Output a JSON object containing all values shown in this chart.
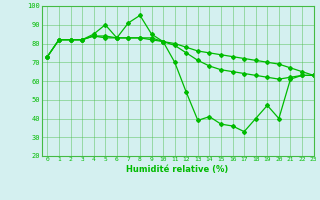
{
  "line1": {
    "x": [
      0,
      1,
      2,
      3,
      4,
      5,
      6,
      7,
      8,
      9,
      10,
      11,
      12,
      13,
      14,
      15,
      16,
      17,
      18,
      19,
      20,
      21,
      22,
      23
    ],
    "y": [
      73,
      82,
      82,
      82,
      85,
      90,
      83,
      91,
      95,
      85,
      81,
      70,
      54,
      39,
      41,
      37,
      36,
      33,
      40,
      47,
      40,
      61,
      63,
      63
    ]
  },
  "line2": {
    "x": [
      0,
      1,
      2,
      3,
      4,
      5,
      6,
      7,
      8,
      9,
      10,
      11,
      12,
      13,
      14,
      15,
      16,
      17,
      18,
      19,
      20,
      21,
      22,
      23
    ],
    "y": [
      73,
      82,
      82,
      82,
      84,
      84,
      83,
      83,
      83,
      82,
      81,
      80,
      78,
      76,
      75,
      74,
      73,
      72,
      71,
      70,
      69,
      67,
      65,
      63
    ]
  },
  "line3": {
    "x": [
      0,
      1,
      2,
      3,
      4,
      5,
      6,
      7,
      8,
      9,
      10,
      11,
      12,
      13,
      14,
      15,
      16,
      17,
      18,
      19,
      20,
      21,
      22,
      23
    ],
    "y": [
      73,
      82,
      82,
      82,
      84,
      83,
      83,
      83,
      83,
      83,
      81,
      79,
      75,
      71,
      68,
      66,
      65,
      64,
      63,
      62,
      61,
      62,
      63,
      63
    ]
  },
  "line_color": "#00bb00",
  "bg_color": "#d4f0f0",
  "grid_color": "#44bb44",
  "xlabel": "Humidité relative (%)",
  "ylim": [
    20,
    100
  ],
  "xlim": [
    -0.5,
    23
  ],
  "yticks": [
    20,
    30,
    40,
    50,
    60,
    70,
    80,
    90,
    100
  ],
  "xticks": [
    0,
    1,
    2,
    3,
    4,
    5,
    6,
    7,
    8,
    9,
    10,
    11,
    12,
    13,
    14,
    15,
    16,
    17,
    18,
    19,
    20,
    21,
    22,
    23
  ]
}
